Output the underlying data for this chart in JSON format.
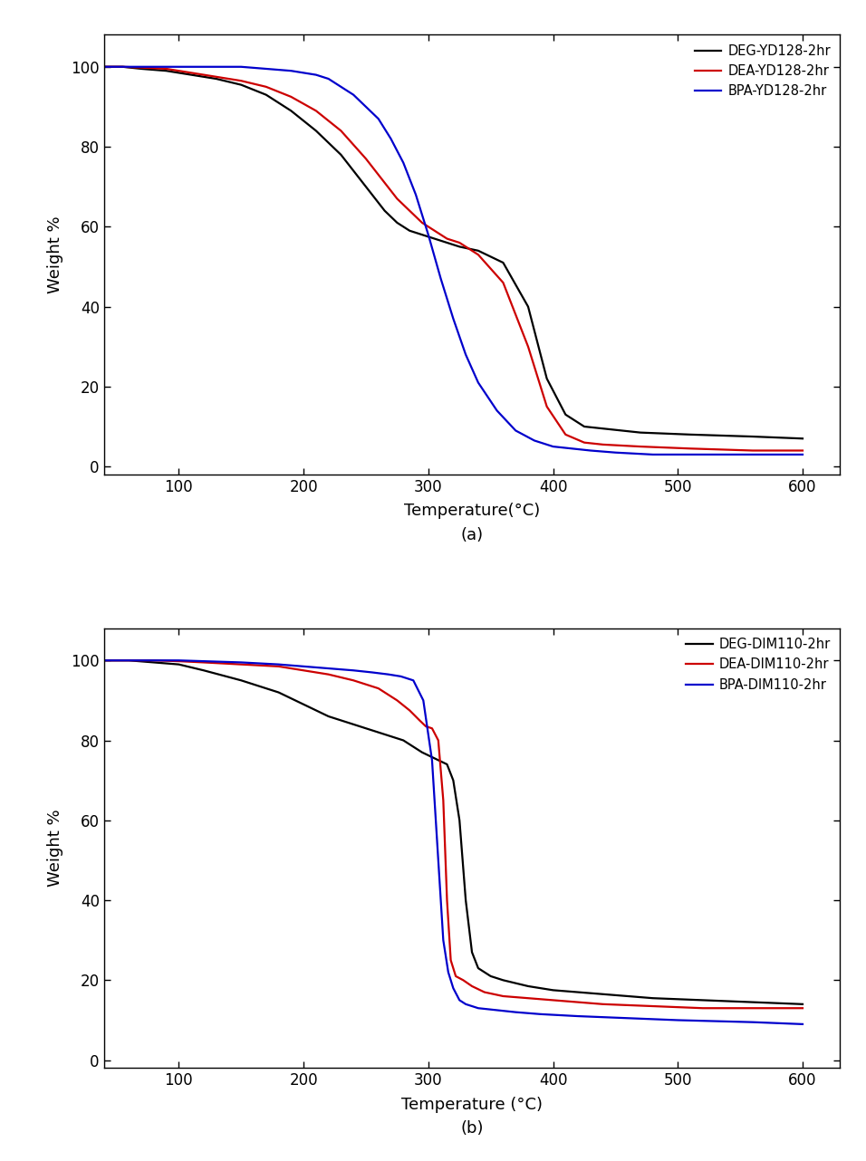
{
  "panel_a": {
    "title": "(a)",
    "xlabel": "Temperature(°C)",
    "ylabel": "Weight %",
    "xlim": [
      40,
      630
    ],
    "ylim": [
      -2,
      108
    ],
    "xticks": [
      100,
      200,
      300,
      400,
      500,
      600
    ],
    "yticks": [
      0,
      20,
      40,
      60,
      80,
      100
    ],
    "legend_labels": [
      "DEG-YD128-2hr",
      "DEA-YD128-2hr",
      "BPA-YD128-2hr"
    ],
    "line_colors": [
      "#000000",
      "#cc0000",
      "#0000cc"
    ],
    "curves": {
      "DEG": {
        "x": [
          40,
          55,
          70,
          90,
          110,
          130,
          150,
          170,
          190,
          210,
          230,
          250,
          265,
          275,
          285,
          295,
          305,
          315,
          325,
          340,
          360,
          380,
          395,
          410,
          425,
          440,
          470,
          510,
          560,
          600
        ],
        "y": [
          100,
          100,
          99.5,
          99,
          98,
          97,
          95.5,
          93,
          89,
          84,
          78,
          70,
          64,
          61,
          59,
          58,
          57,
          56,
          55,
          54,
          51,
          40,
          22,
          13,
          10,
          9.5,
          8.5,
          8,
          7.5,
          7
        ]
      },
      "DEA": {
        "x": [
          40,
          55,
          70,
          90,
          110,
          130,
          150,
          170,
          190,
          210,
          230,
          250,
          265,
          275,
          285,
          295,
          305,
          315,
          325,
          340,
          360,
          380,
          395,
          410,
          425,
          440,
          470,
          510,
          560,
          600
        ],
        "y": [
          100,
          100,
          99.8,
          99.5,
          98.5,
          97.5,
          96.5,
          95,
          92.5,
          89,
          84,
          77,
          71,
          67,
          64,
          61,
          59,
          57,
          56,
          53,
          46,
          30,
          15,
          8,
          6,
          5.5,
          5,
          4.5,
          4,
          4
        ]
      },
      "BPA": {
        "x": [
          40,
          55,
          70,
          90,
          110,
          130,
          150,
          170,
          190,
          200,
          210,
          215,
          220,
          225,
          230,
          240,
          250,
          260,
          270,
          280,
          290,
          300,
          310,
          320,
          330,
          340,
          355,
          370,
          385,
          400,
          415,
          430,
          450,
          480,
          530,
          600
        ],
        "y": [
          100,
          100,
          100,
          100,
          100,
          100,
          100,
          99.5,
          99,
          98.5,
          98,
          97.5,
          97,
          96,
          95,
          93,
          90,
          87,
          82,
          76,
          68,
          58,
          47,
          37,
          28,
          21,
          14,
          9,
          6.5,
          5,
          4.5,
          4,
          3.5,
          3,
          3,
          3
        ]
      }
    }
  },
  "panel_b": {
    "title": "(b)",
    "xlabel": "Temperature (°C)",
    "ylabel": "Weight %",
    "xlim": [
      40,
      630
    ],
    "ylim": [
      -2,
      108
    ],
    "xticks": [
      100,
      200,
      300,
      400,
      500,
      600
    ],
    "yticks": [
      0,
      20,
      40,
      60,
      80,
      100
    ],
    "legend_labels": [
      "DEG-DIM110-2hr",
      "DEA-DIM110-2hr",
      "BPA-DIM110-2hr"
    ],
    "line_colors": [
      "#000000",
      "#cc0000",
      "#0000cc"
    ],
    "curves": {
      "DEG": {
        "x": [
          40,
          60,
          80,
          100,
          120,
          150,
          180,
          200,
          220,
          240,
          260,
          280,
          295,
          305,
          315,
          320,
          325,
          330,
          335,
          340,
          350,
          360,
          380,
          400,
          440,
          480,
          520,
          560,
          600
        ],
        "y": [
          100,
          100,
          99.5,
          99,
          97.5,
          95,
          92,
          89,
          86,
          84,
          82,
          80,
          77,
          75.5,
          74,
          70,
          60,
          40,
          27,
          23,
          21,
          20,
          18.5,
          17.5,
          16.5,
          15.5,
          15,
          14.5,
          14
        ]
      },
      "DEA": {
        "x": [
          40,
          60,
          80,
          100,
          120,
          150,
          180,
          200,
          220,
          240,
          260,
          275,
          285,
          293,
          298,
          303,
          308,
          312,
          315,
          318,
          322,
          328,
          335,
          345,
          360,
          380,
          400,
          440,
          480,
          520,
          560,
          600
        ],
        "y": [
          100,
          100,
          100,
          99.8,
          99.5,
          99,
          98.5,
          97.5,
          96.5,
          95,
          93,
          90,
          87.5,
          85,
          83.5,
          83,
          80,
          65,
          40,
          25,
          21,
          20,
          18.5,
          17,
          16,
          15.5,
          15,
          14,
          13.5,
          13,
          13,
          13
        ]
      },
      "BPA": {
        "x": [
          40,
          60,
          80,
          100,
          120,
          150,
          180,
          200,
          220,
          240,
          255,
          268,
          278,
          288,
          296,
          303,
          308,
          312,
          316,
          320,
          325,
          330,
          340,
          355,
          370,
          390,
          420,
          460,
          500,
          560,
          600
        ],
        "y": [
          100,
          100,
          100,
          100,
          99.8,
          99.5,
          99,
          98.5,
          98,
          97.5,
          97,
          96.5,
          96,
          95,
          90,
          75,
          50,
          30,
          22,
          18,
          15,
          14,
          13,
          12.5,
          12,
          11.5,
          11,
          10.5,
          10,
          9.5,
          9
        ]
      }
    }
  },
  "figure_bg": "#ffffff",
  "axes_bg": "#ffffff",
  "line_width": 1.6
}
